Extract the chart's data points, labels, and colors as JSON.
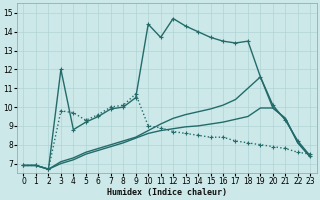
{
  "xlabel": "Humidex (Indice chaleur)",
  "xlim": [
    -0.5,
    23.5
  ],
  "ylim": [
    6.5,
    15.5
  ],
  "yticks": [
    7,
    8,
    9,
    10,
    11,
    12,
    13,
    14,
    15
  ],
  "xticks": [
    0,
    1,
    2,
    3,
    4,
    5,
    6,
    7,
    8,
    9,
    10,
    11,
    12,
    13,
    14,
    15,
    16,
    17,
    18,
    19,
    20,
    21,
    22,
    23
  ],
  "bg_color": "#cce8e8",
  "grid_color": "#b0d4d4",
  "line_color": "#236b6b",
  "lines": [
    {
      "x": [
        0,
        1,
        2,
        3,
        4,
        5,
        6,
        7,
        8,
        9,
        10,
        11,
        12,
        13,
        14,
        15,
        16,
        17,
        18,
        19,
        20,
        21,
        22,
        23
      ],
      "y": [
        6.9,
        6.9,
        6.7,
        12.0,
        8.8,
        9.2,
        9.5,
        9.9,
        10.0,
        10.5,
        14.4,
        13.7,
        14.7,
        14.3,
        14.0,
        13.7,
        13.5,
        13.4,
        13.5,
        11.6,
        10.1,
        9.3,
        8.2,
        7.4
      ],
      "marker": "+",
      "linestyle": "-",
      "lw": 1.0
    },
    {
      "x": [
        0,
        1,
        2,
        3,
        4,
        5,
        6,
        7,
        8,
        9,
        10,
        11,
        12,
        13,
        14,
        15,
        16,
        17,
        18,
        19,
        20,
        21,
        22,
        23
      ],
      "y": [
        6.9,
        6.9,
        6.7,
        9.8,
        9.7,
        9.3,
        9.6,
        10.0,
        10.1,
        10.7,
        9.0,
        8.9,
        8.7,
        8.6,
        8.5,
        8.4,
        8.4,
        8.2,
        8.1,
        8.0,
        7.9,
        7.8,
        7.6,
        7.5
      ],
      "marker": "+",
      "linestyle": ":",
      "lw": 1.0
    },
    {
      "x": [
        0,
        1,
        2,
        3,
        4,
        5,
        6,
        7,
        8,
        9,
        10,
        11,
        12,
        13,
        14,
        15,
        16,
        17,
        18,
        19,
        20,
        21,
        22,
        23
      ],
      "y": [
        6.9,
        6.9,
        6.7,
        7.0,
        7.2,
        7.5,
        7.7,
        7.9,
        8.1,
        8.35,
        8.6,
        8.75,
        8.85,
        8.95,
        9.0,
        9.1,
        9.2,
        9.35,
        9.5,
        9.95,
        9.95,
        9.4,
        8.1,
        7.35
      ],
      "marker": null,
      "linestyle": "-",
      "lw": 1.0
    },
    {
      "x": [
        0,
        1,
        2,
        3,
        4,
        5,
        6,
        7,
        8,
        9,
        10,
        11,
        12,
        13,
        14,
        15,
        16,
        17,
        18,
        19,
        20,
        21,
        22,
        23
      ],
      "y": [
        6.9,
        6.9,
        6.7,
        7.1,
        7.3,
        7.6,
        7.8,
        8.0,
        8.2,
        8.4,
        8.75,
        9.1,
        9.4,
        9.6,
        9.75,
        9.9,
        10.1,
        10.4,
        11.0,
        11.6,
        9.95,
        9.4,
        8.1,
        7.35
      ],
      "marker": null,
      "linestyle": "-",
      "lw": 1.0
    }
  ]
}
